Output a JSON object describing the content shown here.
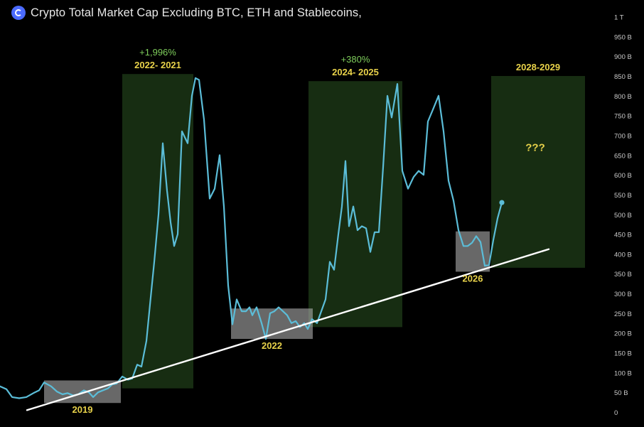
{
  "header": {
    "title": "Crypto Total Market Cap Excluding BTC, ETH and Stablecoins,",
    "logo_icon": "coin-logo-icon"
  },
  "chart_data": {
    "type": "line",
    "title": "Crypto Total Market Cap Excluding BTC, ETH and Stablecoins,",
    "xlabel": "",
    "ylabel": "",
    "ylim": [
      0,
      1050
    ],
    "y_axis_position": "right",
    "yticks": [
      {
        "value": 0,
        "label": "0"
      },
      {
        "value": 50,
        "label": "50 B"
      },
      {
        "value": 100,
        "label": "100 B"
      },
      {
        "value": 150,
        "label": "150 B"
      },
      {
        "value": 200,
        "label": "200 B"
      },
      {
        "value": 250,
        "label": "250 B"
      },
      {
        "value": 300,
        "label": "300 B"
      },
      {
        "value": 350,
        "label": "350 B"
      },
      {
        "value": 400,
        "label": "400 B"
      },
      {
        "value": 450,
        "label": "450 B"
      },
      {
        "value": 500,
        "label": "500 B"
      },
      {
        "value": 550,
        "label": "550 B"
      },
      {
        "value": 600,
        "label": "600 B"
      },
      {
        "value": 650,
        "label": "650 B"
      },
      {
        "value": 700,
        "label": "700 B"
      },
      {
        "value": 750,
        "label": "750 B"
      },
      {
        "value": 800,
        "label": "800 B"
      },
      {
        "value": 850,
        "label": "850 B"
      },
      {
        "value": 900,
        "label": "900 B"
      },
      {
        "value": 950,
        "label": "950 B"
      },
      {
        "value": 1000,
        "label": "1 T"
      }
    ],
    "series": [
      {
        "color": "#5bbdd8",
        "points": [
          [
            0,
            65
          ],
          [
            9,
            58
          ],
          [
            17,
            38
          ],
          [
            27,
            35
          ],
          [
            37,
            38
          ],
          [
            47,
            48
          ],
          [
            55,
            55
          ],
          [
            62,
            75
          ],
          [
            72,
            65
          ],
          [
            80,
            52
          ],
          [
            88,
            45
          ],
          [
            95,
            48
          ],
          [
            103,
            42
          ],
          [
            110,
            45
          ],
          [
            118,
            55
          ],
          [
            125,
            50
          ],
          [
            131,
            38
          ],
          [
            138,
            50
          ],
          [
            145,
            55
          ],
          [
            152,
            60
          ],
          [
            158,
            70
          ],
          [
            164,
            72
          ],
          [
            172,
            90
          ],
          [
            180,
            82
          ],
          [
            186,
            85
          ],
          [
            193,
            120
          ],
          [
            199,
            115
          ],
          [
            206,
            180
          ],
          [
            212,
            290
          ],
          [
            217,
            380
          ],
          [
            223,
            500
          ],
          [
            229,
            680
          ],
          [
            235,
            560
          ],
          [
            240,
            480
          ],
          [
            245,
            420
          ],
          [
            250,
            450
          ],
          [
            256,
            710
          ],
          [
            264,
            680
          ],
          [
            270,
            800
          ],
          [
            275,
            845
          ],
          [
            280,
            840
          ],
          [
            287,
            740
          ],
          [
            295,
            540
          ],
          [
            302,
            565
          ],
          [
            309,
            650
          ],
          [
            315,
            520
          ],
          [
            321,
            320
          ],
          [
            327,
            222
          ],
          [
            333,
            285
          ],
          [
            340,
            255
          ],
          [
            346,
            255
          ],
          [
            351,
            265
          ],
          [
            355,
            245
          ],
          [
            361,
            265
          ],
          [
            368,
            225
          ],
          [
            374,
            185
          ],
          [
            380,
            250
          ],
          [
            386,
            255
          ],
          [
            392,
            265
          ],
          [
            398,
            255
          ],
          [
            404,
            245
          ],
          [
            410,
            225
          ],
          [
            416,
            230
          ],
          [
            422,
            215
          ],
          [
            428,
            225
          ],
          [
            433,
            210
          ],
          [
            439,
            235
          ],
          [
            446,
            225
          ],
          [
            452,
            255
          ],
          [
            458,
            285
          ],
          [
            464,
            380
          ],
          [
            470,
            360
          ],
          [
            476,
            450
          ],
          [
            481,
            520
          ],
          [
            486,
            635
          ],
          [
            491,
            470
          ],
          [
            497,
            520
          ],
          [
            503,
            460
          ],
          [
            509,
            470
          ],
          [
            515,
            465
          ],
          [
            521,
            405
          ],
          [
            527,
            455
          ],
          [
            533,
            455
          ],
          [
            539,
            620
          ],
          [
            545,
            800
          ],
          [
            551,
            745
          ],
          [
            559,
            830
          ],
          [
            566,
            610
          ],
          [
            574,
            565
          ],
          [
            582,
            595
          ],
          [
            589,
            610
          ],
          [
            596,
            600
          ],
          [
            602,
            735
          ],
          [
            609,
            765
          ],
          [
            617,
            800
          ],
          [
            624,
            710
          ],
          [
            631,
            585
          ],
          [
            638,
            535
          ],
          [
            645,
            460
          ],
          [
            652,
            420
          ],
          [
            658,
            420
          ],
          [
            664,
            428
          ],
          [
            670,
            445
          ],
          [
            676,
            430
          ],
          [
            682,
            370
          ],
          [
            688,
            372
          ],
          [
            694,
            435
          ],
          [
            700,
            490
          ],
          [
            706,
            530
          ]
        ],
        "end_marker": [
          706,
          530
        ]
      }
    ],
    "trendline": {
      "color": "#ffffff",
      "from": [
        38,
        5
      ],
      "to": [
        772,
        412
      ]
    },
    "shaded_zones": [
      {
        "kind": "accumulation",
        "fill": "#b4b4b4",
        "x_range": [
          62,
          170
        ],
        "y_range": [
          23,
          80
        ],
        "label": "2019"
      },
      {
        "kind": "accumulation",
        "fill": "#b4b4b4",
        "x_range": [
          325,
          440
        ],
        "y_range": [
          185,
          262
        ],
        "label": "2022"
      },
      {
        "kind": "accumulation",
        "fill": "#b4b4b4",
        "x_range": [
          641,
          689
        ],
        "y_range": [
          355,
          457
        ],
        "label": "2026"
      },
      {
        "kind": "bull",
        "fill": "#1d3a17",
        "x_range": [
          172,
          272
        ],
        "y_range": [
          60,
          855
        ],
        "label": "2022- 2021",
        "gain_label": "+1,996%"
      },
      {
        "kind": "bull",
        "fill": "#1d3a17",
        "x_range": [
          434,
          566
        ],
        "y_range": [
          215,
          837
        ],
        "label": "2024- 2025",
        "gain_label": "+380%"
      },
      {
        "kind": "bull",
        "fill": "#1d3a17",
        "x_range": [
          691,
          823
        ],
        "y_range": [
          365,
          850
        ],
        "label": "2028-2029",
        "inner_label": "???"
      }
    ],
    "legend": "none",
    "grid": false
  }
}
